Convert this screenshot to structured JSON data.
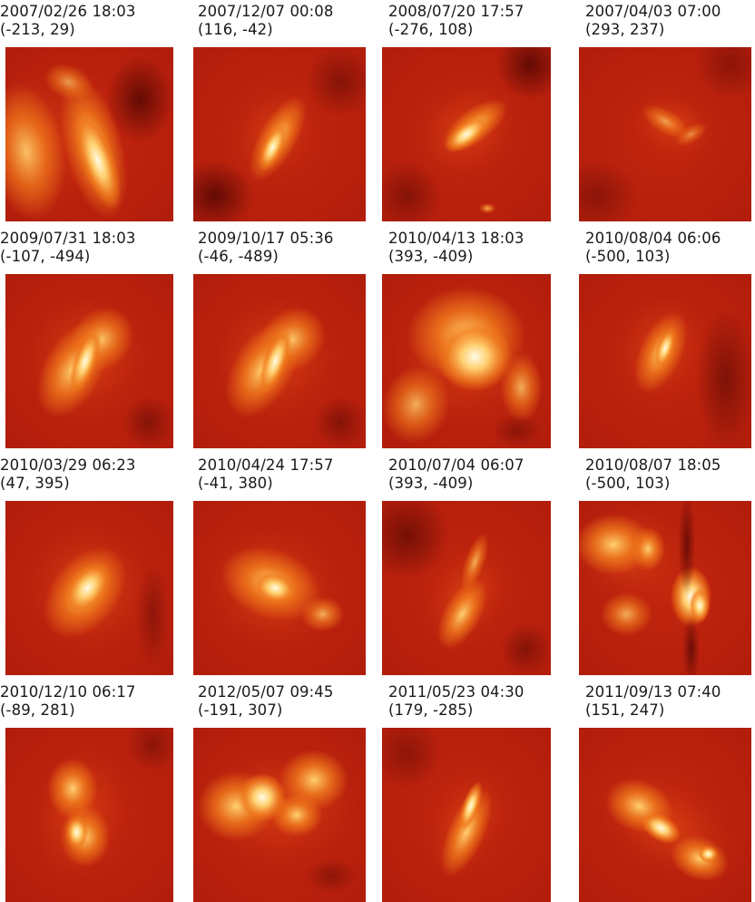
{
  "panels": [
    {
      "date": "2007/02/26 18:03",
      "coords": "(-213, 29)",
      "shape": "loops-left-sigmoid"
    },
    {
      "date": "2007/12/07 00:08",
      "coords": "(116, -42)",
      "shape": "small-sigmoid"
    },
    {
      "date": "2008/07/20 17:57",
      "coords": "(-276, 108)",
      "shape": "bright-core-sigmoid"
    },
    {
      "date": "2007/04/03 07:00",
      "coords": "(293, 237)",
      "shape": "faint-diffuse"
    },
    {
      "date": "2009/07/31 18:03",
      "coords": "(-107, -494)",
      "shape": "sigmoid"
    },
    {
      "date": "2009/10/17 05:36",
      "coords": "(-46, -489)",
      "shape": "sigmoid"
    },
    {
      "date": "2010/04/13 18:03",
      "coords": "(393, -409)",
      "shape": "large-arcade"
    },
    {
      "date": "2010/08/04 06:06",
      "coords": "(-500, 103)",
      "shape": "compact-sigmoid"
    },
    {
      "date": "2010/03/29 06:23",
      "coords": "(47, 395)",
      "shape": "bright-sigmoid"
    },
    {
      "date": "2010/04/24 17:57",
      "coords": "(-41, 380)",
      "shape": "broad-sigmoid"
    },
    {
      "date": "2010/07/04 06:07",
      "coords": "(393, -409)",
      "shape": "thin-sigmoid"
    },
    {
      "date": "2010/08/07 18:05",
      "coords": "(-500, 103)",
      "shape": "flare-limb"
    },
    {
      "date": "2010/12/10 06:17",
      "coords": "(-89, 281)",
      "shape": "s-shape"
    },
    {
      "date": "2012/05/07 09:45",
      "coords": "(-191, 307)",
      "shape": "wide-arcade"
    },
    {
      "date": "2011/05/23 04:30",
      "coords": "(179, -285)",
      "shape": "hook-sigmoid"
    },
    {
      "date": "2011/09/13 07:40",
      "coords": "(151, 247)",
      "shape": "elongated-sigmoid"
    }
  ],
  "colors": {
    "background_red": "#b01c0c",
    "dark_red": "#5a0804",
    "orange": "#f07a1c",
    "yellow": "#ffd070",
    "white_core": "#fffbe6"
  }
}
